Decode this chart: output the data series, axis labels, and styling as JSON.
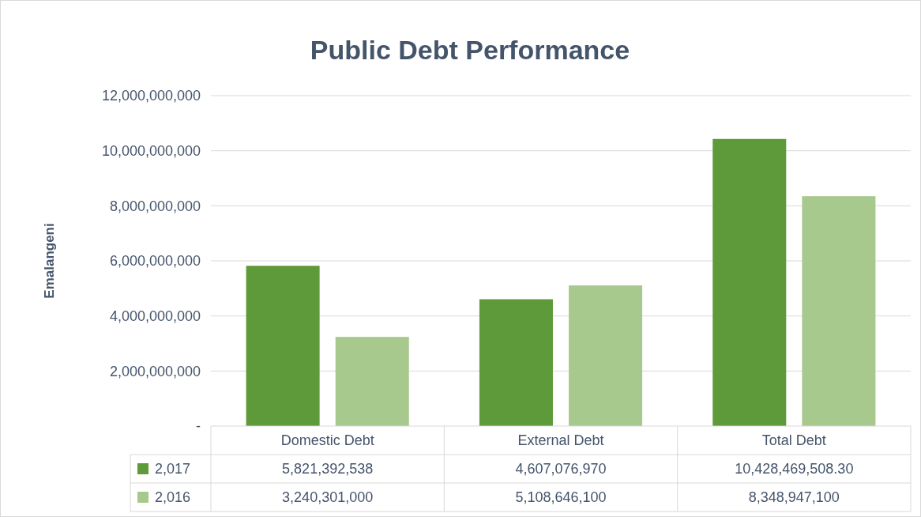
{
  "chart_data": {
    "type": "bar",
    "title": "Public Debt Performance",
    "ylabel": "Emalangeni",
    "categories": [
      "Domestic Debt",
      "External Debt",
      "Total Debt"
    ],
    "series": [
      {
        "name": "2,017",
        "color": "#5e9a3a",
        "values": [
          5821392538,
          4607076970,
          10428469508.3
        ],
        "value_labels": [
          "5,821,392,538",
          "4,607,076,970",
          "10,428,469,508.30"
        ]
      },
      {
        "name": "2,016",
        "color": "#a8c98e",
        "values": [
          3240301000,
          5108646100,
          8348947100
        ],
        "value_labels": [
          "3,240,301,000",
          "5,108,646,100",
          "8,348,947,100"
        ]
      }
    ],
    "ylim": [
      0,
      12000000000
    ],
    "yticks": [
      {
        "value": 0,
        "label": "-"
      },
      {
        "value": 2000000000,
        "label": "2,000,000,000"
      },
      {
        "value": 4000000000,
        "label": "4,000,000,000"
      },
      {
        "value": 6000000000,
        "label": "6,000,000,000"
      },
      {
        "value": 8000000000,
        "label": "8,000,000,000"
      },
      {
        "value": 10000000000,
        "label": "10,000,000,000"
      },
      {
        "value": 12000000000,
        "label": "12,000,000,000"
      }
    ],
    "grid": "y",
    "legend": "bottom"
  }
}
